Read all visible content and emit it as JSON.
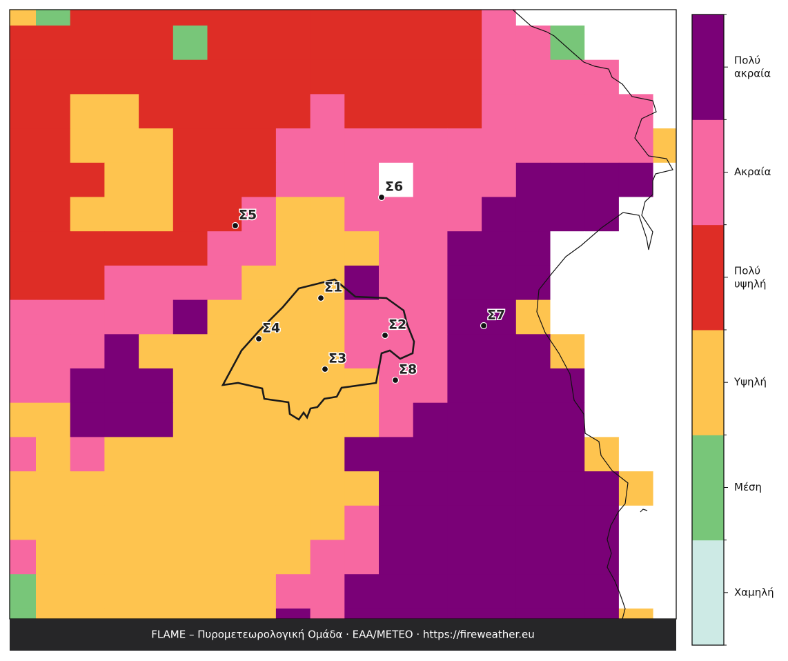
{
  "map": {
    "levels": [
      {
        "label": "Χαμηλή",
        "color": "#cdeae5"
      },
      {
        "label": "Μέση",
        "color": "#78c679"
      },
      {
        "label": "Υψηλή",
        "color": "#fec44f"
      },
      {
        "label": "Πολύ υψηλή",
        "color": "#de2d26"
      },
      {
        "label": "Ακραία",
        "color": "#f768a1"
      },
      {
        "label": "Πολύ ακραία",
        "color": "#7a0177"
      }
    ],
    "grid": [
      [
        2,
        1,
        3,
        3,
        3,
        3,
        3,
        3,
        3,
        3,
        3,
        3,
        3,
        3,
        4,
        null,
        null,
        null,
        null,
        null
      ],
      [
        3,
        3,
        3,
        3,
        3,
        1,
        3,
        3,
        3,
        3,
        3,
        3,
        3,
        3,
        4,
        4,
        1,
        null,
        null,
        null
      ],
      [
        3,
        3,
        3,
        3,
        3,
        3,
        3,
        3,
        3,
        3,
        3,
        3,
        3,
        3,
        4,
        4,
        4,
        4,
        null,
        null
      ],
      [
        3,
        3,
        2,
        2,
        3,
        3,
        3,
        3,
        3,
        4,
        3,
        3,
        3,
        3,
        4,
        4,
        4,
        4,
        4,
        null
      ],
      [
        3,
        3,
        2,
        2,
        2,
        3,
        3,
        3,
        4,
        4,
        4,
        4,
        4,
        4,
        4,
        4,
        4,
        4,
        4,
        2
      ],
      [
        3,
        3,
        3,
        2,
        2,
        3,
        3,
        3,
        4,
        4,
        4,
        null,
        4,
        4,
        4,
        5,
        5,
        5,
        5,
        null
      ],
      [
        3,
        3,
        2,
        2,
        2,
        3,
        3,
        4,
        2,
        2,
        4,
        4,
        4,
        4,
        5,
        5,
        5,
        5,
        null,
        null
      ],
      [
        3,
        3,
        3,
        3,
        3,
        3,
        4,
        4,
        2,
        2,
        2,
        4,
        4,
        5,
        5,
        5,
        null,
        null,
        null,
        null
      ],
      [
        3,
        3,
        3,
        4,
        4,
        4,
        4,
        2,
        2,
        2,
        5,
        4,
        4,
        5,
        5,
        5,
        null,
        null,
        null,
        null
      ],
      [
        4,
        4,
        4,
        4,
        4,
        5,
        2,
        2,
        2,
        2,
        4,
        4,
        4,
        5,
        5,
        2,
        null,
        null,
        null,
        null
      ],
      [
        4,
        4,
        4,
        5,
        2,
        2,
        2,
        2,
        2,
        2,
        4,
        4,
        4,
        5,
        5,
        5,
        2,
        null,
        null,
        null
      ],
      [
        4,
        4,
        5,
        5,
        5,
        2,
        2,
        2,
        2,
        2,
        2,
        4,
        4,
        5,
        5,
        5,
        5,
        null,
        null,
        null
      ],
      [
        2,
        2,
        5,
        5,
        5,
        2,
        2,
        2,
        2,
        2,
        2,
        4,
        5,
        5,
        5,
        5,
        5,
        null,
        null,
        null
      ],
      [
        4,
        2,
        4,
        2,
        2,
        2,
        2,
        2,
        2,
        2,
        5,
        5,
        5,
        5,
        5,
        5,
        5,
        2,
        null,
        null
      ],
      [
        2,
        2,
        2,
        2,
        2,
        2,
        2,
        2,
        2,
        2,
        2,
        5,
        5,
        5,
        5,
        5,
        5,
        5,
        2,
        null
      ],
      [
        2,
        2,
        2,
        2,
        2,
        2,
        2,
        2,
        2,
        2,
        4,
        5,
        5,
        5,
        5,
        5,
        5,
        5,
        null,
        null
      ],
      [
        4,
        2,
        2,
        2,
        2,
        2,
        2,
        2,
        2,
        4,
        4,
        5,
        5,
        5,
        5,
        5,
        5,
        5,
        null,
        null
      ],
      [
        1,
        2,
        2,
        2,
        2,
        2,
        2,
        2,
        4,
        4,
        5,
        5,
        5,
        5,
        5,
        5,
        5,
        5,
        null,
        null
      ],
      [
        1,
        2,
        2,
        2,
        2,
        2,
        2,
        2,
        5,
        4,
        5,
        5,
        5,
        5,
        5,
        5,
        5,
        5,
        2,
        null
      ]
    ],
    "stations": [
      "Σ1",
      "Σ2",
      "Σ3",
      "Σ4",
      "Σ5",
      "Σ6",
      "Σ7",
      "Σ8"
    ]
  },
  "footer": "FLAME – Πυρομετεωρολογική Ομάδα · ΕΑΑ/METEO · https://fireweather.eu"
}
